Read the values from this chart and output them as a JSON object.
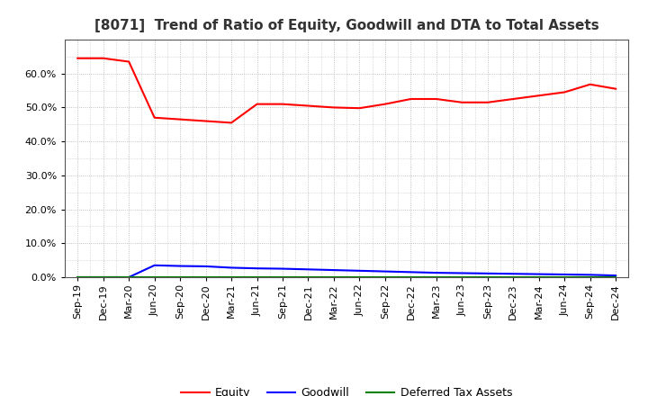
{
  "title": "[8071]  Trend of Ratio of Equity, Goodwill and DTA to Total Assets",
  "x_labels": [
    "Sep-19",
    "Dec-19",
    "Mar-20",
    "Jun-20",
    "Sep-20",
    "Dec-20",
    "Mar-21",
    "Jun-21",
    "Sep-21",
    "Dec-21",
    "Mar-22",
    "Jun-22",
    "Sep-22",
    "Dec-22",
    "Mar-23",
    "Jun-23",
    "Sep-23",
    "Dec-23",
    "Mar-24",
    "Jun-24",
    "Sep-24",
    "Dec-24"
  ],
  "equity": [
    64.5,
    64.5,
    63.5,
    47.0,
    46.5,
    46.0,
    45.5,
    51.0,
    51.0,
    50.5,
    50.0,
    49.8,
    51.0,
    52.5,
    52.5,
    51.5,
    51.5,
    52.5,
    53.5,
    54.5,
    56.8,
    55.5
  ],
  "goodwill": [
    0.0,
    0.0,
    0.0,
    3.5,
    3.3,
    3.2,
    2.8,
    2.6,
    2.5,
    2.3,
    2.1,
    1.9,
    1.7,
    1.5,
    1.3,
    1.2,
    1.1,
    1.0,
    0.9,
    0.8,
    0.7,
    0.5
  ],
  "dta": [
    0.0,
    0.0,
    0.0,
    0.0,
    0.0,
    0.0,
    0.0,
    0.0,
    0.0,
    0.0,
    0.0,
    0.0,
    0.0,
    0.0,
    0.0,
    0.0,
    0.0,
    0.0,
    0.0,
    0.0,
    0.0,
    0.0
  ],
  "equity_color": "#ff0000",
  "goodwill_color": "#0000ff",
  "dta_color": "#008000",
  "bg_color": "#ffffff",
  "plot_bg_color": "#ffffff",
  "grid_color": "#b0b0b0",
  "ylim": [
    0,
    70
  ],
  "yticks": [
    0,
    10,
    20,
    30,
    40,
    50,
    60
  ],
  "title_fontsize": 11,
  "tick_fontsize": 8,
  "legend_fontsize": 9
}
